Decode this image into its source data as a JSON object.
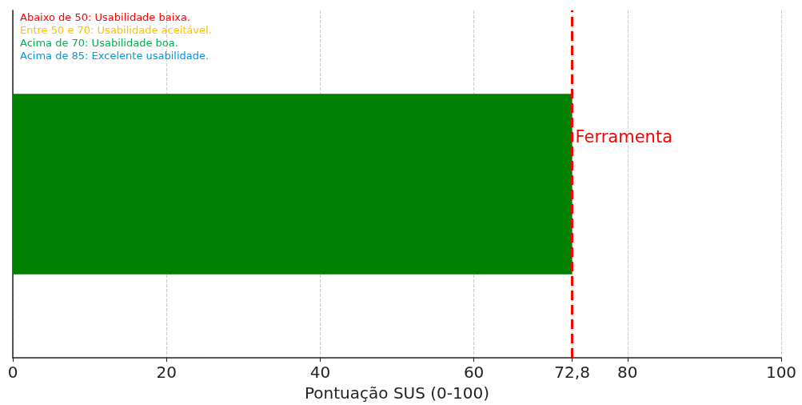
{
  "chart_data": {
    "type": "bar",
    "orientation": "horizontal",
    "categories": [
      null
    ],
    "series": [
      {
        "color": "#008000",
        "values": [
          72.8
        ]
      }
    ],
    "xlabel": "Pontuação SUS (0-100)",
    "xlim": [
      0,
      100
    ],
    "xticks": [
      0,
      20,
      40,
      60,
      {
        "value": 72.8,
        "label": "72,8"
      },
      80,
      100
    ],
    "grid": "x",
    "ref_lines": [
      {
        "axis": "x",
        "value": 72.8,
        "label": "Ferramenta",
        "color": "#ff0000",
        "line_style": "dashed"
      }
    ],
    "annotations": [
      "Abaixo de 50: Usabilidade baixa.",
      "Entre 50 e 70: Usabilidade aceitável.",
      "Acima de 70: Usabilidade boa.",
      "Acima de 85: Excelente usabilidade."
    ]
  }
}
